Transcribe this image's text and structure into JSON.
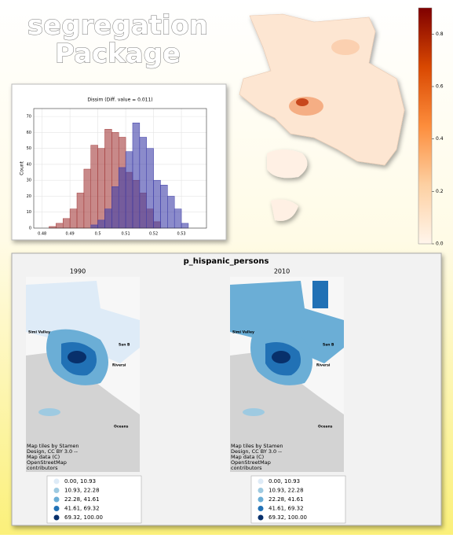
{
  "header": {
    "line1": "segregation",
    "line2": "Package"
  },
  "chart_data": [
    {
      "type": "histogram",
      "title": "Dissim (Diff. value = 0.011)",
      "y_label": "Count",
      "xlim": [
        0.477,
        0.539
      ],
      "xticks": [
        0.48,
        0.49,
        0.5,
        0.51,
        0.52,
        0.53
      ],
      "ylim": [
        0,
        75
      ],
      "yticks": [
        0,
        10,
        20,
        30,
        40,
        50,
        60,
        70
      ],
      "grid": true,
      "series": [
        {
          "color": "#a33a3a",
          "bins": [
            0.4825,
            0.485,
            0.4875,
            0.49,
            0.4925,
            0.495,
            0.4975,
            0.5,
            0.5025,
            0.505,
            0.5075,
            0.51,
            0.5125,
            0.515,
            0.5175,
            0.52,
            0.5225
          ],
          "values": [
            1,
            3,
            6,
            12,
            22,
            37,
            52,
            50,
            62,
            60,
            57,
            35,
            30,
            22,
            12,
            4
          ]
        },
        {
          "color": "#3d3da8",
          "bins": [
            0.4975,
            0.5,
            0.5025,
            0.505,
            0.5075,
            0.51,
            0.5125,
            0.515,
            0.5175,
            0.52,
            0.5225,
            0.525,
            0.5275,
            0.53,
            0.5325
          ],
          "values": [
            2,
            5,
            12,
            26,
            38,
            48,
            66,
            57,
            50,
            30,
            27,
            20,
            12,
            3
          ]
        }
      ]
    },
    {
      "type": "colorbar",
      "colors": [
        "#fff5eb",
        "#fdd0a2",
        "#fd8d3c",
        "#d94801",
        "#7f0000"
      ],
      "ylim": [
        0,
        0.9
      ],
      "yticks": [
        {
          "value": 0,
          "label": "0.0"
        },
        0.2,
        0.4,
        0.6,
        0.8
      ]
    }
  ],
  "maps": {
    "title": "p_hispanic_persons",
    "panels": [
      {
        "year": "1990",
        "places": [
          "Simi Valley",
          "San B",
          "Riversi",
          "Oceans"
        ],
        "attribution": [
          "Map tiles by Stamen",
          "Design, CC BY 3.0 --",
          "Map data (C)",
          "OpenStreetMap",
          "contributors"
        ]
      },
      {
        "year": "2010",
        "places": [
          "Simi Valley",
          "San B",
          "Riversi",
          "Oceans"
        ],
        "attribution": [
          "Map tiles by Stamen",
          "Design, CC BY 3.0 --",
          "Map data (C)",
          "OpenStreetMap",
          "contributors"
        ]
      }
    ],
    "legend": [
      {
        "label": "0.00, 10.93",
        "color": "#deebf7"
      },
      {
        "label": "10.93, 22.28",
        "color": "#9ecae1"
      },
      {
        "label": "22.28, 41.61",
        "color": "#6baed6"
      },
      {
        "label": "41.61, 69.32",
        "color": "#2171b5"
      },
      {
        "label": "69.32, 100.00",
        "color": "#08306b"
      }
    ]
  }
}
